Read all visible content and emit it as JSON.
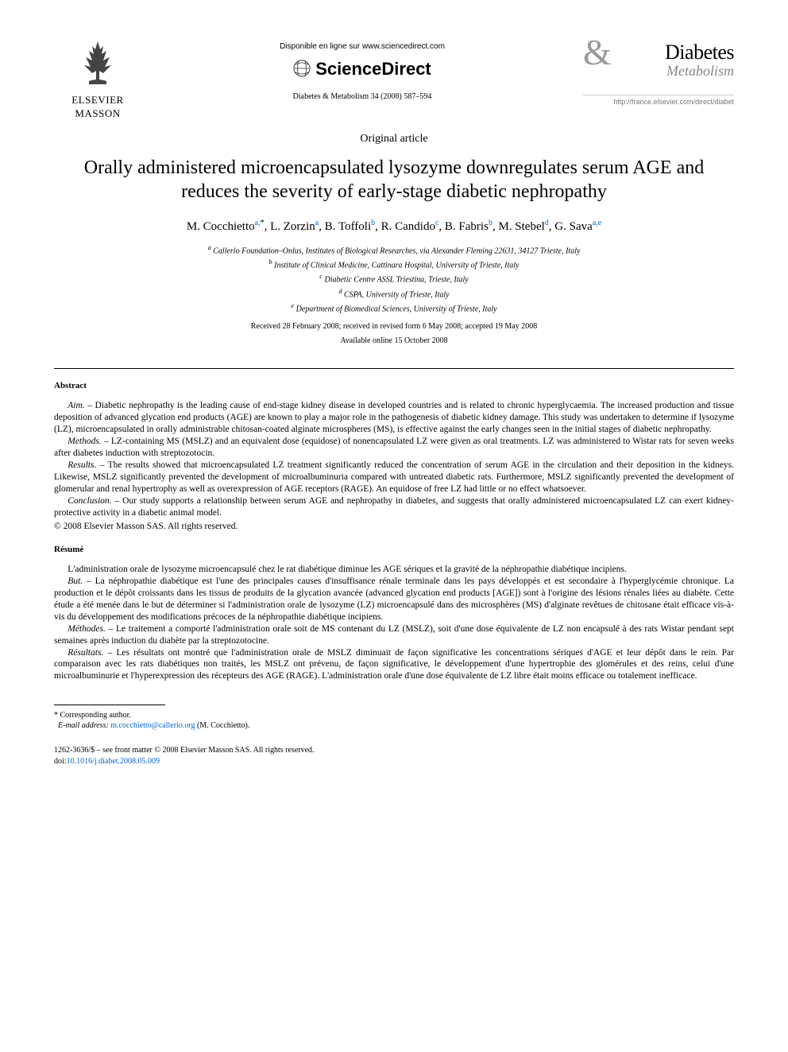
{
  "header": {
    "publisher_name": "ELSEVIER",
    "publisher_sub": "MASSON",
    "disponible": "Disponible en ligne sur www.sciencedirect.com",
    "sd_name": "ScienceDirect",
    "journal_ref": "Diabetes & Metabolism 34 (2008) 587–594",
    "journal_amp": "&",
    "journal_name": "Diabetes",
    "journal_sub": "Metabolism",
    "journal_url": "http://france.elsevier.com/direct/diabet"
  },
  "article_type": "Original article",
  "title": "Orally administered microencapsulated lysozyme downregulates serum AGE and reduces the severity of early-stage diabetic nephropathy",
  "authors": [
    {
      "name": "M. Cocchietto",
      "affil": "a,",
      "corr": "*"
    },
    {
      "name": "L. Zorzin",
      "affil": "a"
    },
    {
      "name": "B. Toffoli",
      "affil": "b"
    },
    {
      "name": "R. Candido",
      "affil": "c"
    },
    {
      "name": "B. Fabris",
      "affil": "b"
    },
    {
      "name": "M. Stebel",
      "affil": "d"
    },
    {
      "name": "G. Sava",
      "affil": "a,e"
    }
  ],
  "affiliations": [
    {
      "key": "a",
      "text": "Callerio Foundation–Onlus, Institutes of Biological Researches, via Alexander Fleming 22631, 34127 Trieste, Italy"
    },
    {
      "key": "b",
      "text": "Institute of Clinical Medicine, Cattinara Hospital, University of Trieste, Italy"
    },
    {
      "key": "c",
      "text": "Diabetic Centre ASSL Triestina, Trieste, Italy"
    },
    {
      "key": "d",
      "text": "CSPA, University of Trieste, Italy"
    },
    {
      "key": "e",
      "text": "Department of Biomedical Sciences, University of Trieste, Italy"
    }
  ],
  "dates": "Received 28 February 2008; received in revised form 6 May 2008; accepted 19 May 2008",
  "available": "Available online 15 October 2008",
  "abstract": {
    "heading": "Abstract",
    "paragraphs": [
      {
        "lead": "Aim. – ",
        "text": "Diabetic nephropathy is the leading cause of end-stage kidney disease in developed countries and is related to chronic hyperglycaemia. The increased production and tissue deposition of advanced glycation end products (AGE) are known to play a major role in the pathogenesis of diabetic kidney damage. This study was undertaken to determine if lysozyme (LZ), microencapsulated in orally administrable chitosan-coated alginate microspheres (MS), is effective against the early changes seen in the initial stages of diabetic nephropathy."
      },
      {
        "lead": "Methods. – ",
        "text": "LZ-containing MS (MSLZ) and an equivalent dose (equidose) of nonencapsulated LZ were given as oral treatments. LZ was administered to Wistar rats for seven weeks after diabetes induction with streptozotocin."
      },
      {
        "lead": "Results. – ",
        "text": "The results showed that microencapsulated LZ treatment significantly reduced the concentration of serum AGE in the circulation and their deposition in the kidneys. Likewise, MSLZ significantly prevented the development of microalbuminuria compared with untreated diabetic rats. Furthermore, MSLZ significantly prevented the development of glomerular and renal hypertrophy as well as overexpression of AGE receptors (RAGE). An equidose of free LZ had little or no effect whatsoever."
      },
      {
        "lead": "Conclusion. – ",
        "text": "Our study supports a relationship between serum AGE and nephropathy in diabetes, and suggests that orally administered microencapsulated LZ can exert kidney-protective activity in a diabetic animal model."
      }
    ],
    "copyright": "© 2008 Elsevier Masson SAS. All rights reserved."
  },
  "resume": {
    "heading": "Résumé",
    "intro": "L'administration orale de lysozyme microencapsulé chez le rat diabétique diminue les AGE sériques et la gravité de la néphropathie diabétique incipiens.",
    "paragraphs": [
      {
        "lead": "But. – ",
        "text": "La néphropathie diabétique est l'une des principales causes d'insuffisance rénale terminale dans les pays développés et est secondaire à l'hyperglycémie chronique. La production et le dépôt croissants dans les tissus de produits de la glycation avancée (advanced glycation end products [AGE]) sont à l'origine des lésions rénales liées au diabète. Cette étude a été menée dans le but de déterminer si l'administration orale de lysozyme (LZ) microencapsulé dans des microsphères (MS) d'alginate revêtues de chitosane était efficace vis-à-vis du développement des modifications précoces de la néphropathie diabétique incipiens."
      },
      {
        "lead": "Méthodes. – ",
        "text": "Le traitement a comporté l'administration orale soit de MS contenant du LZ (MSLZ), soit d'une dose équivalente de LZ non encapsulé à des rats Wistar pendant sept semaines après induction du diabète par la streptozotocine."
      },
      {
        "lead": "Résultats. – ",
        "text": "Les résultats ont montré que l'administration orale de MSLZ diminuait de façon significative les concentrations sériques d'AGE et leur dépôt dans le rein. Par comparaison avec les rats diabétiques non traités, les MSLZ ont prévenu, de façon significative, le développement d'une hypertrophie des glomérules et des reins, celui d'une microalbuminurie et l'hyperexpression des récepteurs des AGE (RAGE). L'administration orale d'une dose équivalente de LZ libre était moins efficace ou totalement inefficace."
      }
    ]
  },
  "footnote": {
    "marker": "*",
    "label": "Corresponding author.",
    "email_label": "E-mail address:",
    "email": "m.cocchietto@callerio.org",
    "email_who": "(M. Cocchietto)."
  },
  "bottom": {
    "line1": "1262-3636/$ – see front matter © 2008 Elsevier Masson SAS. All rights reserved.",
    "doi_label": "doi:",
    "doi": "10.1016/j.diabet.2008.05.009"
  },
  "colors": {
    "link": "#0066cc",
    "text": "#000000",
    "muted": "#888888"
  }
}
